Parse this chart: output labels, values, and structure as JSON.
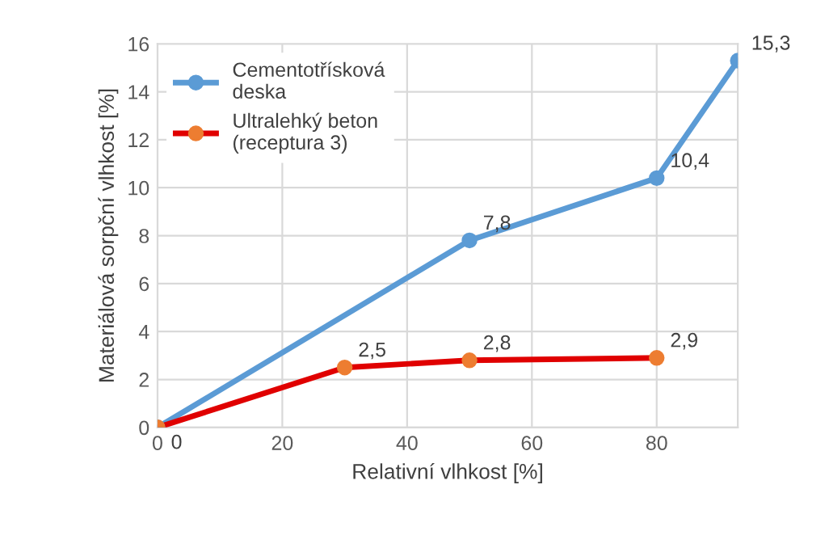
{
  "chart_data": {
    "type": "line",
    "xlabel": "Relativní vlhkost [%]",
    "ylabel": "Materiálová sorpční vlhkost [%]",
    "xlim": [
      0,
      93
    ],
    "xticks": [
      0,
      20,
      40,
      60,
      80
    ],
    "ylim": [
      0,
      16
    ],
    "yticks": [
      0,
      2,
      4,
      6,
      8,
      10,
      12,
      14,
      16
    ],
    "grid": true,
    "legend": "top left",
    "marker": "circle",
    "line_style": "solid",
    "series": [
      {
        "name": "Cementotřísková\ndeska",
        "color": "#5b9bd5",
        "colors": [
          "#5b9bd5",
          "#5b9bd5",
          "#5b9bd5",
          "#5b9bd5"
        ],
        "x": [
          0,
          50,
          80,
          93
        ],
        "values": [
          0,
          7.8,
          10.4,
          15.3
        ],
        "value_labels": [
          null,
          "7,8",
          "10,4",
          "15,3"
        ]
      },
      {
        "name": "Ultralehký beton\n(receptura 3)",
        "color": "#e00000",
        "colors": [
          "#ed7d31",
          "#ed7d31",
          "#ed7d31",
          "#ed7d31"
        ],
        "x": [
          0,
          30,
          50,
          80
        ],
        "values": [
          0,
          2.5,
          2.8,
          2.9
        ],
        "value_labels": [
          "0",
          "2,5",
          "2,8",
          "2,9"
        ]
      }
    ]
  }
}
